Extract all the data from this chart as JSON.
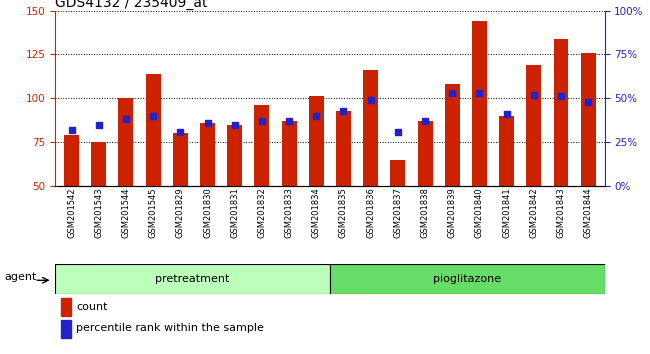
{
  "title": "GDS4132 / 235409_at",
  "categories": [
    "GSM201542",
    "GSM201543",
    "GSM201544",
    "GSM201545",
    "GSM201829",
    "GSM201830",
    "GSM201831",
    "GSM201832",
    "GSM201833",
    "GSM201834",
    "GSM201835",
    "GSM201836",
    "GSM201837",
    "GSM201838",
    "GSM201839",
    "GSM201840",
    "GSM201841",
    "GSM201842",
    "GSM201843",
    "GSM201844"
  ],
  "red_bars": [
    79,
    75,
    100,
    114,
    80,
    86,
    85,
    96,
    87,
    101,
    93,
    116,
    65,
    87,
    108,
    144,
    90,
    119,
    134,
    126
  ],
  "blue_pct": [
    32,
    35,
    38,
    40,
    31,
    36,
    35,
    37,
    37,
    40,
    43,
    49,
    31,
    37,
    53,
    53,
    41,
    52,
    51,
    48
  ],
  "bar_color": "#cc2200",
  "dot_color": "#2222cc",
  "ylim_left": [
    50,
    150
  ],
  "ylim_right": [
    0,
    100
  ],
  "yticks_left": [
    50,
    75,
    100,
    125,
    150
  ],
  "ytick_labels_right": [
    "0%",
    "25%",
    "50%",
    "75%",
    "100%"
  ],
  "yticks_right": [
    0,
    25,
    50,
    75,
    100
  ],
  "group_labels": [
    "pretreatment",
    "pioglitazone"
  ],
  "group_split": 10,
  "pretreat_color": "#bbffbb",
  "pioglit_color": "#66dd66",
  "agent_label": "agent",
  "legend_count_label": "count",
  "legend_pct_label": "percentile rank within the sample",
  "background_color": "#ffffff",
  "bar_width": 0.55,
  "tick_color_left": "#cc2200",
  "tick_color_right": "#2222cc",
  "title_fontsize": 10,
  "label_fontsize": 7.5,
  "legend_fontsize": 8
}
